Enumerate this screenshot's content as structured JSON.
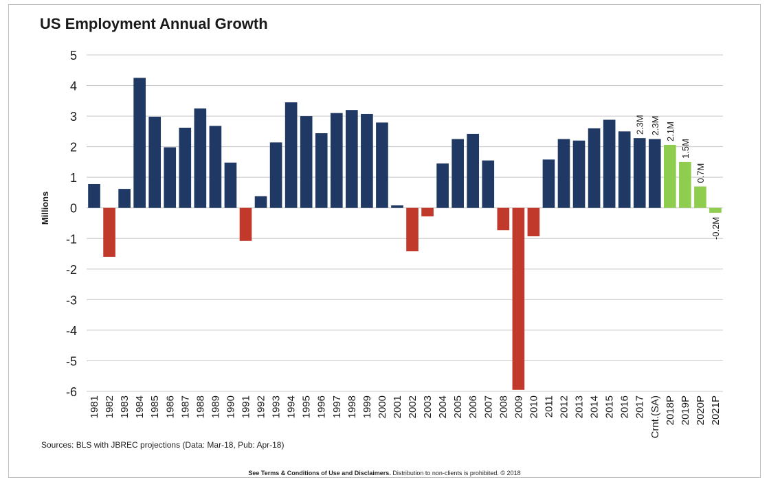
{
  "footer": {
    "terms": "See Terms & Conditions of Use and Disclaimers.",
    "notice": "Distribution to non-clients is prohibited. © 2018"
  },
  "chart_data": {
    "type": "bar",
    "title": "US Employment Annual Growth",
    "ylabel": "Millions",
    "xlabel": "",
    "source": "Sources: BLS with JBREC projections (Data: Mar-18, Pub: Apr-18)",
    "ylim": [
      -6,
      5
    ],
    "yticks": [
      5,
      4,
      3,
      2,
      1,
      0,
      -1,
      -2,
      -3,
      -4,
      -5,
      -6
    ],
    "grid": true,
    "colors": {
      "positive": "#1f3864",
      "negative": "#c0392b",
      "projection": "#8fcd4f"
    },
    "categories": [
      "1981",
      "1982",
      "1983",
      "1984",
      "1985",
      "1986",
      "1987",
      "1988",
      "1989",
      "1990",
      "1991",
      "1992",
      "1993",
      "1994",
      "1995",
      "1996",
      "1997",
      "1998",
      "1999",
      "2000",
      "2001",
      "2002",
      "2003",
      "2004",
      "2005",
      "2006",
      "2007",
      "2008",
      "2009",
      "2010",
      "2011",
      "2012",
      "2013",
      "2014",
      "2015",
      "2016",
      "2017",
      "Crnt.(SA)",
      "2018P",
      "2019P",
      "2020P",
      "2021P"
    ],
    "values": [
      0.78,
      -1.6,
      0.62,
      4.25,
      2.98,
      1.98,
      2.62,
      3.25,
      2.68,
      1.48,
      -1.08,
      0.38,
      2.14,
      3.45,
      3.0,
      2.44,
      3.1,
      3.2,
      3.07,
      2.79,
      0.08,
      -1.42,
      -0.28,
      1.45,
      2.25,
      2.42,
      1.55,
      -0.73,
      -5.95,
      -0.93,
      1.58,
      2.25,
      2.2,
      2.6,
      2.88,
      2.5,
      2.28,
      2.25,
      2.06,
      1.5,
      0.7,
      -0.16
    ],
    "projected": [
      false,
      false,
      false,
      false,
      false,
      false,
      false,
      false,
      false,
      false,
      false,
      false,
      false,
      false,
      false,
      false,
      false,
      false,
      false,
      false,
      false,
      false,
      false,
      false,
      false,
      false,
      false,
      false,
      false,
      false,
      false,
      false,
      false,
      false,
      false,
      false,
      false,
      false,
      true,
      true,
      true,
      true
    ],
    "data_labels": [
      "",
      "",
      "",
      "",
      "",
      "",
      "",
      "",
      "",
      "",
      "",
      "",
      "",
      "",
      "",
      "",
      "",
      "",
      "",
      "",
      "",
      "",
      "",
      "",
      "",
      "",
      "",
      "",
      "",
      "",
      "",
      "",
      "",
      "",
      "",
      "",
      "2.3M",
      "2.3M",
      "2.1M",
      "1.5M",
      "0.7M",
      "-0.2M"
    ]
  }
}
